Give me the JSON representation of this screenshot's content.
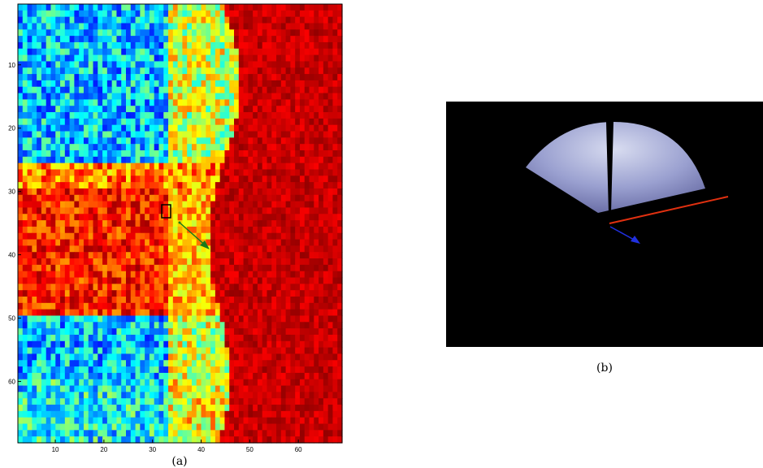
{
  "panels": [
    {
      "caption": "(a)",
      "xlim": [
        2.3,
        69
      ],
      "ylim": [
        0.4,
        69.7
      ],
      "xticks": [
        10,
        20,
        30,
        40,
        50,
        60
      ],
      "yticks": [
        10,
        20,
        30,
        40,
        50,
        60
      ]
    },
    {
      "caption": "(b)"
    }
  ]
}
